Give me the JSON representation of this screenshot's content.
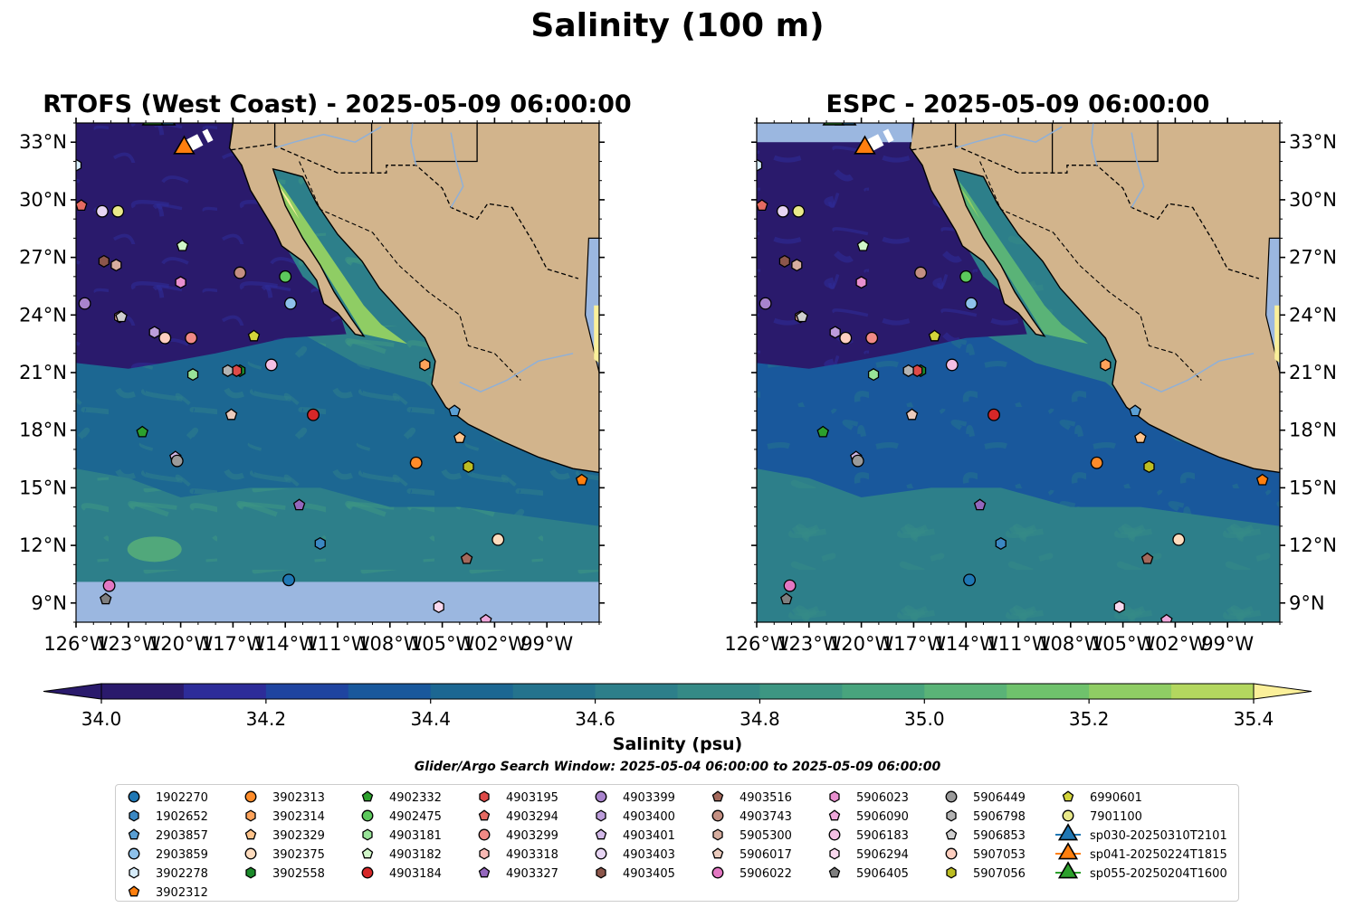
{
  "title": "Salinity (100 m)",
  "panels": [
    {
      "title": "RTOFS (West Coast) - 2025-05-09 06:00:00",
      "model": "rtofs"
    },
    {
      "title": "ESPC - 2025-05-09 06:00:00",
      "model": "espc"
    }
  ],
  "colorbar": {
    "label": "Salinity (psu)",
    "ticks": [
      "34.0",
      "34.2",
      "34.4",
      "34.6",
      "34.8",
      "35.0",
      "35.2",
      "35.4"
    ],
    "levels": [
      34.0,
      34.1,
      34.2,
      34.3,
      34.4,
      34.5,
      34.6,
      34.7,
      34.8,
      34.9,
      35.0,
      35.1,
      35.2,
      35.3,
      35.4
    ],
    "colors": [
      "#2a1a6c",
      "#2d2c99",
      "#1f44a0",
      "#19589c",
      "#1c6792",
      "#24738d",
      "#2d7f8a",
      "#358a86",
      "#3d9682",
      "#48a47d",
      "#5ab377",
      "#6fc26c",
      "#8fcd64",
      "#b3d75f",
      "#d2e06c",
      "#fbf09a"
    ],
    "extend": "both"
  },
  "search_window": "Glider/Argo Search Window: 2025-05-04 06:00:00 to 2025-05-09 06:00:00",
  "chart_data": {
    "type": "map",
    "variable": "salinity",
    "depth": "100 m",
    "units": "psu",
    "lon_range": [
      -126,
      -96
    ],
    "lat_range": [
      8,
      34
    ],
    "x_ticks": [
      "126°W",
      "123°W",
      "120°W",
      "117°W",
      "114°W",
      "111°W",
      "108°W",
      "105°W",
      "102°W",
      "99°W"
    ],
    "x_tick_lons": [
      -126,
      -123,
      -120,
      -117,
      -114,
      -111,
      -108,
      -105,
      -102,
      -99
    ],
    "y_ticks": [
      "9°N",
      "12°N",
      "15°N",
      "18°N",
      "21°N",
      "24°N",
      "27°N",
      "30°N",
      "33°N"
    ],
    "y_tick_lats": [
      9,
      12,
      15,
      18,
      21,
      24,
      27,
      30,
      33
    ],
    "floats": [
      {
        "id": "1902270",
        "lon": -113.8,
        "lat": 10.2,
        "marker": "circle",
        "color": "#1f77b4"
      },
      {
        "id": "1902652",
        "lon": -112.0,
        "lat": 12.1,
        "marker": "hexagon",
        "color": "#3b88c3"
      },
      {
        "id": "2903857",
        "lon": -104.3,
        "lat": 19.0,
        "marker": "pentagon",
        "color": "#5a9fd4"
      },
      {
        "id": "2903859",
        "lon": -113.7,
        "lat": 24.6,
        "marker": "circle",
        "color": "#8ec1ea"
      },
      {
        "id": "3902278",
        "lon": -126.0,
        "lat": 31.8,
        "marker": "hexagon",
        "color": "#d6ecfa"
      },
      {
        "id": "3902312",
        "lon": -97.0,
        "lat": 15.4,
        "marker": "pentagon",
        "color": "#ff7f0e"
      },
      {
        "id": "3902313",
        "lon": -106.5,
        "lat": 16.3,
        "marker": "circle",
        "color": "#ff8c2a"
      },
      {
        "id": "3902314",
        "lon": -106.0,
        "lat": 21.4,
        "marker": "hexagon",
        "color": "#ffa35a"
      },
      {
        "id": "3902329",
        "lon": -104.0,
        "lat": 17.6,
        "marker": "pentagon",
        "color": "#ffc38a"
      },
      {
        "id": "3902375",
        "lon": -101.8,
        "lat": 12.3,
        "marker": "circle",
        "color": "#ffdcbe"
      },
      {
        "id": "3902558",
        "lon": -116.6,
        "lat": 21.1,
        "marker": "hexagon",
        "color": "#1b8a2a"
      },
      {
        "id": "4902332",
        "lon": -122.2,
        "lat": 17.9,
        "marker": "pentagon",
        "color": "#2ca02c"
      },
      {
        "id": "4902475",
        "lon": -114.0,
        "lat": 26.0,
        "marker": "circle",
        "color": "#5cc85c"
      },
      {
        "id": "4903181",
        "lon": -119.3,
        "lat": 20.9,
        "marker": "hexagon",
        "color": "#98e398"
      },
      {
        "id": "4903182",
        "lon": -119.9,
        "lat": 27.6,
        "marker": "pentagon",
        "color": "#d0f7c8"
      },
      {
        "id": "4903184",
        "lon": -112.4,
        "lat": 18.8,
        "marker": "circle",
        "color": "#d62728"
      },
      {
        "id": "4903195",
        "lon": -116.8,
        "lat": 21.1,
        "marker": "hexagon",
        "color": "#de4a48"
      },
      {
        "id": "4903294",
        "lon": -125.7,
        "lat": 29.7,
        "marker": "pentagon",
        "color": "#e56a62"
      },
      {
        "id": "4903299",
        "lon": -119.4,
        "lat": 22.8,
        "marker": "circle",
        "color": "#f08a86"
      },
      {
        "id": "4903318",
        "lon": -123.5,
        "lat": 23.9,
        "marker": "hexagon",
        "color": "#f8b9b4"
      },
      {
        "id": "4903327",
        "lon": -113.2,
        "lat": 14.1,
        "marker": "pentagon",
        "color": "#9467bd"
      },
      {
        "id": "4903399",
        "lon": -125.5,
        "lat": 24.6,
        "marker": "circle",
        "color": "#a883cc"
      },
      {
        "id": "4903400",
        "lon": -121.5,
        "lat": 23.1,
        "marker": "hexagon",
        "color": "#bc9ddb"
      },
      {
        "id": "4903401",
        "lon": -120.3,
        "lat": 16.6,
        "marker": "pentagon",
        "color": "#d2b9e8"
      },
      {
        "id": "4903403",
        "lon": -124.5,
        "lat": 29.4,
        "marker": "circle",
        "color": "#e7d5f3"
      },
      {
        "id": "4903405",
        "lon": -124.4,
        "lat": 26.8,
        "marker": "hexagon",
        "color": "#8c564b"
      },
      {
        "id": "4903516",
        "lon": -103.6,
        "lat": 11.3,
        "marker": "pentagon",
        "color": "#a4695c"
      },
      {
        "id": "4903743",
        "lon": -116.6,
        "lat": 26.2,
        "marker": "circle",
        "color": "#c38f82"
      },
      {
        "id": "5905300",
        "lon": -123.7,
        "lat": 26.6,
        "marker": "hexagon",
        "color": "#d6ad9f"
      },
      {
        "id": "5906017",
        "lon": -117.1,
        "lat": 18.8,
        "marker": "pentagon",
        "color": "#ebcbbd"
      },
      {
        "id": "5906022",
        "lon": -124.1,
        "lat": 9.9,
        "marker": "circle",
        "color": "#e377c2"
      },
      {
        "id": "5906023",
        "lon": -120.0,
        "lat": 25.7,
        "marker": "hexagon",
        "color": "#e88fcf"
      },
      {
        "id": "5906090",
        "lon": -102.5,
        "lat": 8.1,
        "marker": "pentagon",
        "color": "#eea7da"
      },
      {
        "id": "5906183",
        "lon": -114.8,
        "lat": 21.4,
        "marker": "circle",
        "color": "#f4bfe4"
      },
      {
        "id": "5906294",
        "lon": -105.2,
        "lat": 8.8,
        "marker": "hexagon",
        "color": "#f9d8ee"
      },
      {
        "id": "5906405",
        "lon": -124.3,
        "lat": 9.2,
        "marker": "pentagon",
        "color": "#7f7f7f"
      },
      {
        "id": "5906449",
        "lon": -120.2,
        "lat": 16.4,
        "marker": "circle",
        "color": "#9a9a9a"
      },
      {
        "id": "5906798",
        "lon": -117.3,
        "lat": 21.1,
        "marker": "hexagon",
        "color": "#b3b3b3"
      },
      {
        "id": "5906853",
        "lon": -123.4,
        "lat": 23.9,
        "marker": "pentagon",
        "color": "#cfcfcf"
      },
      {
        "id": "5907053",
        "lon": -120.9,
        "lat": 22.8,
        "marker": "circle",
        "color": "#ffcfc0"
      },
      {
        "id": "5907056",
        "lon": -103.5,
        "lat": 16.1,
        "marker": "hexagon",
        "color": "#bcbd22"
      },
      {
        "id": "6990601",
        "lon": -115.8,
        "lat": 22.9,
        "marker": "pentagon",
        "color": "#d3d43a"
      },
      {
        "id": "7901100",
        "lon": -123.6,
        "lat": 29.4,
        "marker": "circle",
        "color": "#e9e98a"
      }
    ],
    "gliders": [
      {
        "id": "sp030-20250310T2101",
        "marker": "triangle",
        "color": "#1f77b4",
        "lon": -120.9,
        "lat": 34.2
      },
      {
        "id": "sp041-20250224T1815",
        "marker": "triangle",
        "color": "#ff7f0e",
        "lon": -119.8,
        "lat": 32.7
      },
      {
        "id": "sp055-20250204T1600",
        "marker": "triangle",
        "color": "#2ca02c",
        "lon": -121.6,
        "lat": 34.2
      }
    ]
  }
}
